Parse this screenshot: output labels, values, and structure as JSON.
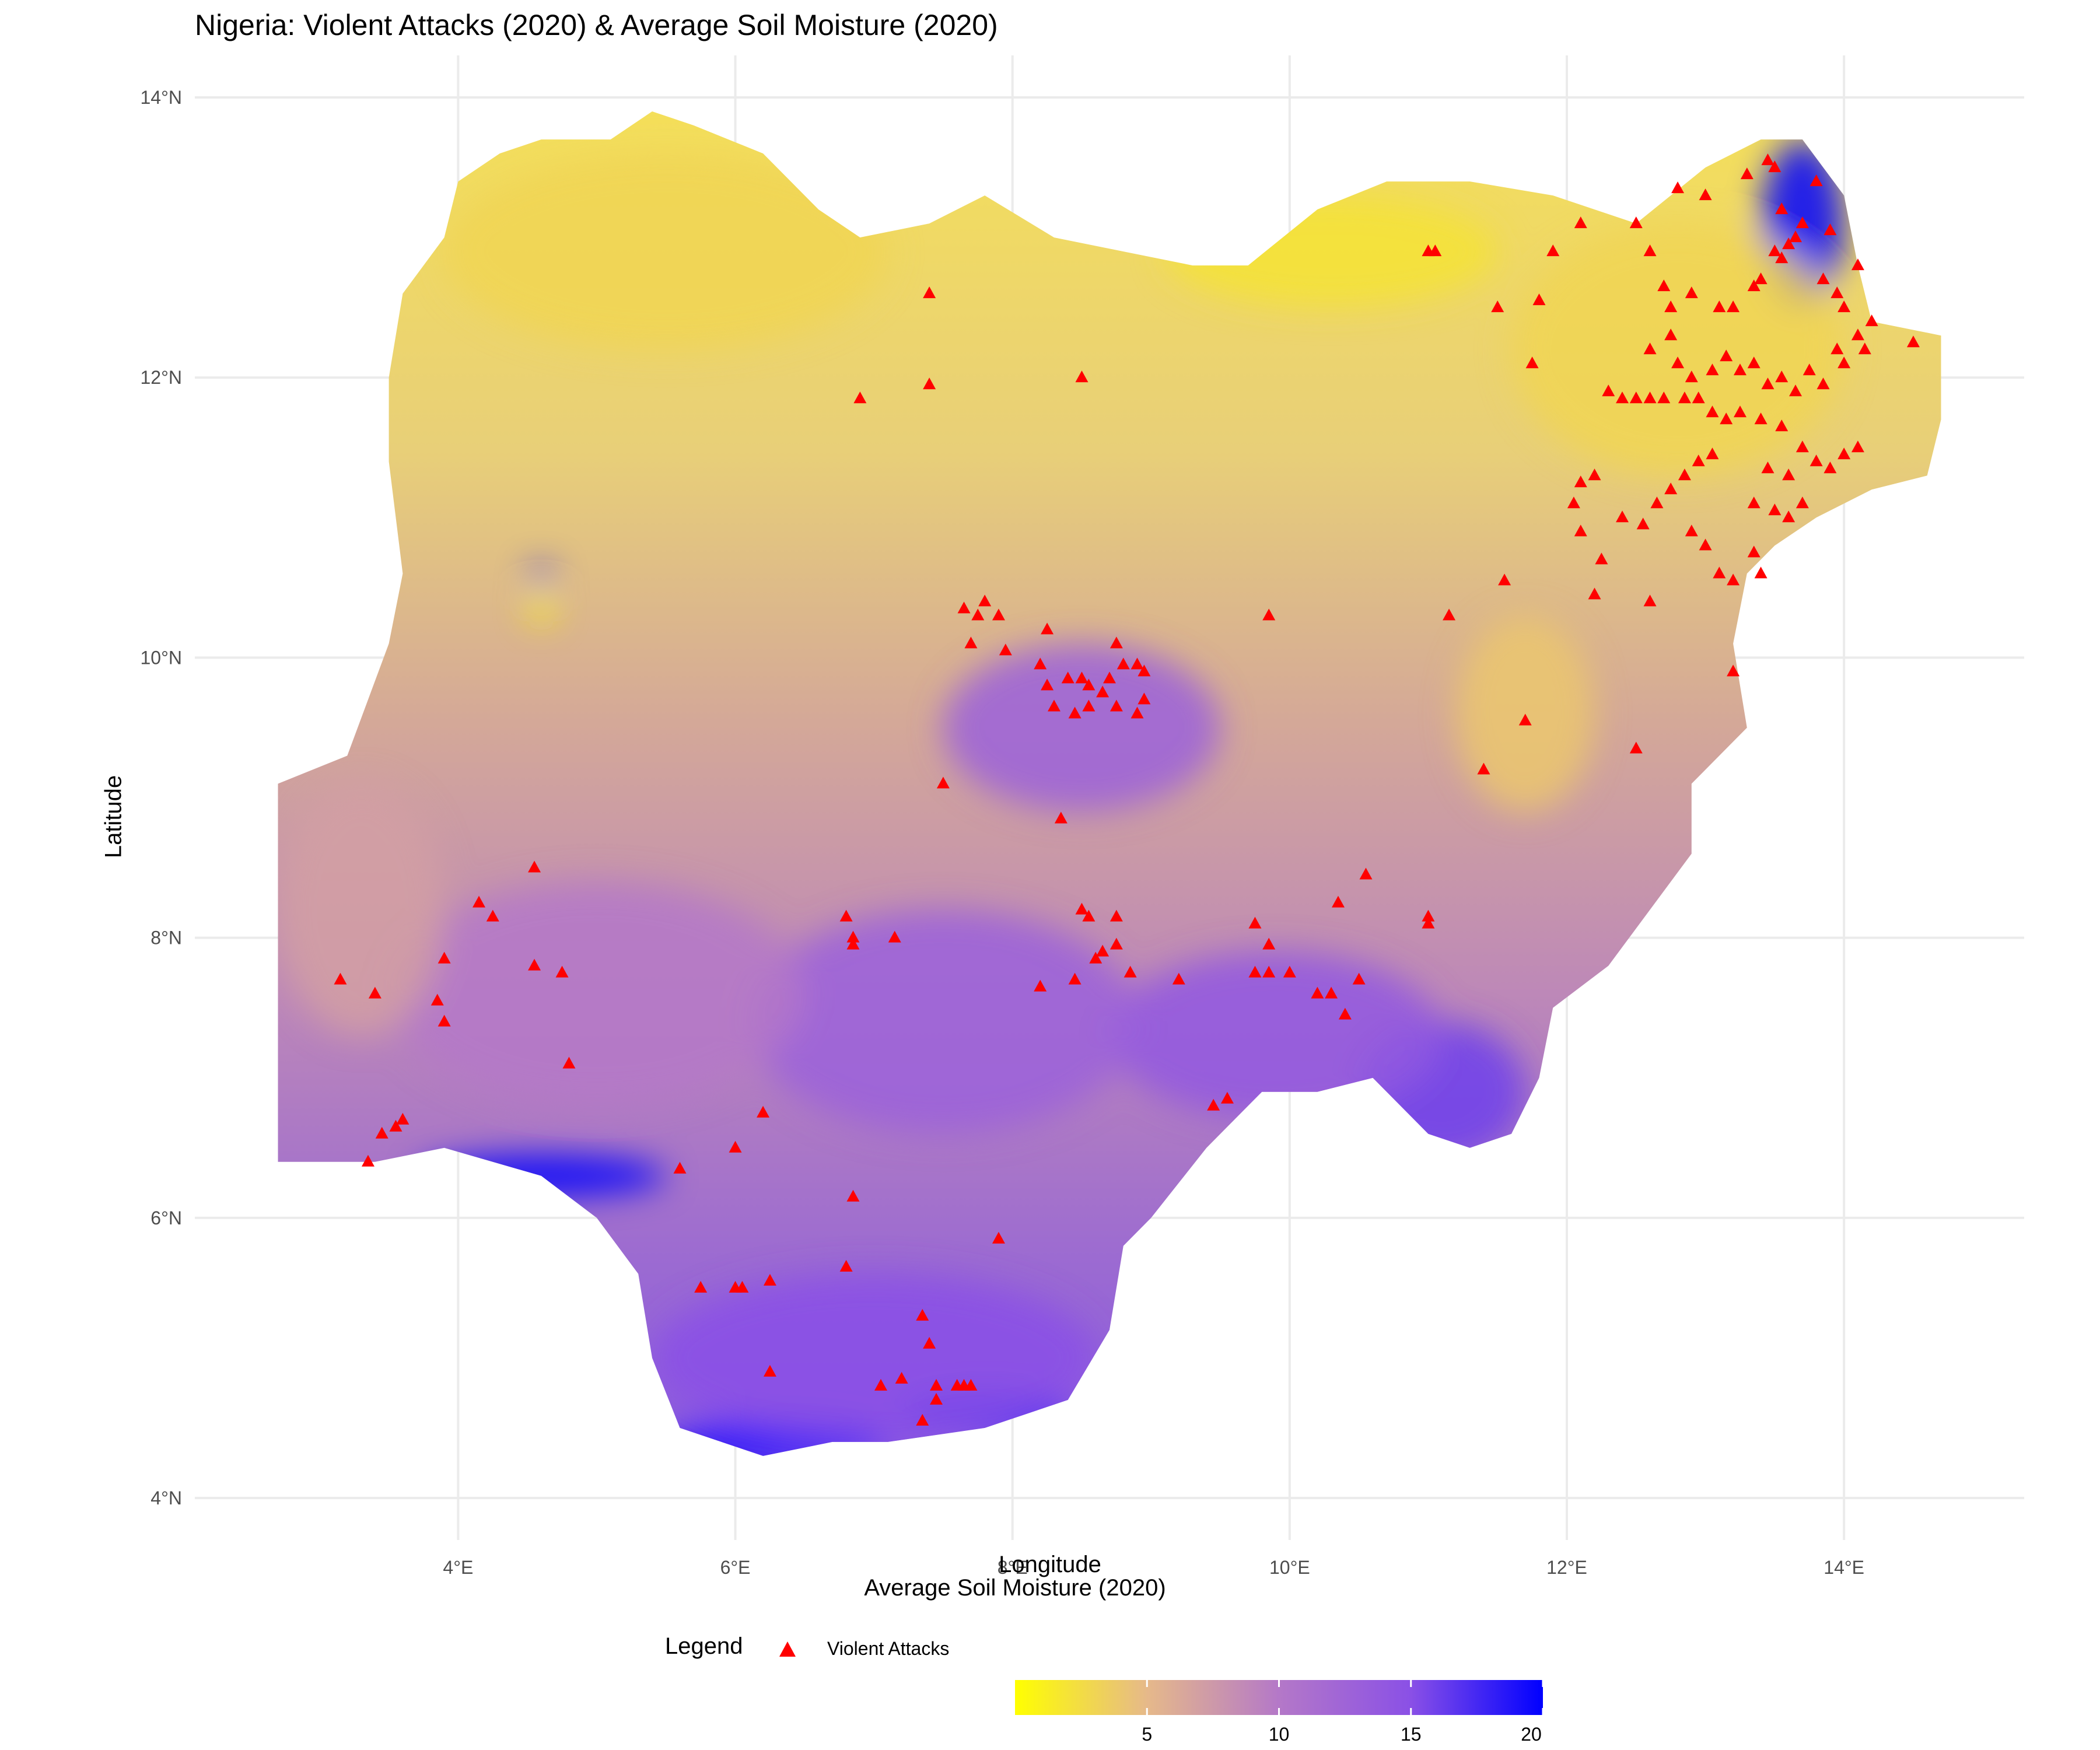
{
  "title": "Nigeria: Violent Attacks (2020) & Average Soil Moisture (2020)",
  "x_axis": {
    "label": "Longitude",
    "ticks": [
      {
        "value": 4,
        "label": "4°E"
      },
      {
        "value": 6,
        "label": "6°E"
      },
      {
        "value": 8,
        "label": "8°E"
      },
      {
        "value": 10,
        "label": "10°E"
      },
      {
        "value": 12,
        "label": "12°E"
      },
      {
        "value": 14,
        "label": "14°E"
      }
    ]
  },
  "y_axis": {
    "label": "Latitude",
    "ticks": [
      {
        "value": 4,
        "label": "4°N"
      },
      {
        "value": 6,
        "label": "6°N"
      },
      {
        "value": 8,
        "label": "8°N"
      },
      {
        "value": 10,
        "label": "10°N"
      },
      {
        "value": 12,
        "label": "12°N"
      },
      {
        "value": 14,
        "label": "14°N"
      }
    ]
  },
  "legend": {
    "title": "Legend",
    "attacks_label": "Violent Attacks",
    "attack_color": "#ff0000"
  },
  "colorbar": {
    "title": "Average Soil Moisture (2020)",
    "ticks": [
      5,
      10,
      15,
      20
    ],
    "range": [
      0,
      20
    ],
    "colors": [
      "#ffff00",
      "#e6b98a",
      "#b478c8",
      "#8a50e6",
      "#0000ff"
    ]
  },
  "map_data": {
    "region": "Nigeria",
    "lon_range": [
      2.1,
      15.3
    ],
    "lat_range": [
      3.7,
      14.3
    ],
    "outline": [
      [
        2.7,
        6.4
      ],
      [
        2.7,
        7.8
      ],
      [
        2.7,
        9.1
      ],
      [
        3.2,
        9.3
      ],
      [
        3.5,
        10.1
      ],
      [
        3.6,
        10.6
      ],
      [
        3.5,
        11.4
      ],
      [
        3.5,
        12.0
      ],
      [
        3.6,
        12.6
      ],
      [
        3.9,
        13.0
      ],
      [
        4.0,
        13.4
      ],
      [
        4.3,
        13.6
      ],
      [
        4.6,
        13.7
      ],
      [
        5.1,
        13.7
      ],
      [
        5.4,
        13.9
      ],
      [
        5.7,
        13.8
      ],
      [
        6.2,
        13.6
      ],
      [
        6.6,
        13.2
      ],
      [
        6.9,
        13.0
      ],
      [
        7.4,
        13.1
      ],
      [
        7.8,
        13.3
      ],
      [
        8.3,
        13.0
      ],
      [
        8.8,
        12.9
      ],
      [
        9.3,
        12.8
      ],
      [
        9.7,
        12.8
      ],
      [
        10.2,
        13.2
      ],
      [
        10.7,
        13.4
      ],
      [
        11.3,
        13.4
      ],
      [
        11.9,
        13.3
      ],
      [
        12.5,
        13.1
      ],
      [
        13.0,
        13.5
      ],
      [
        13.4,
        13.7
      ],
      [
        13.7,
        13.7
      ],
      [
        14.0,
        13.3
      ],
      [
        14.1,
        12.8
      ],
      [
        14.2,
        12.4
      ],
      [
        14.7,
        12.3
      ],
      [
        14.7,
        11.7
      ],
      [
        14.6,
        11.3
      ],
      [
        14.2,
        11.2
      ],
      [
        13.8,
        11.0
      ],
      [
        13.5,
        10.8
      ],
      [
        13.3,
        10.6
      ],
      [
        13.2,
        10.1
      ],
      [
        13.3,
        9.5
      ],
      [
        12.9,
        9.1
      ],
      [
        12.9,
        8.6
      ],
      [
        12.6,
        8.2
      ],
      [
        12.3,
        7.8
      ],
      [
        11.9,
        7.5
      ],
      [
        11.8,
        7.0
      ],
      [
        11.6,
        6.6
      ],
      [
        11.3,
        6.5
      ],
      [
        11.0,
        6.6
      ],
      [
        10.6,
        7.0
      ],
      [
        10.2,
        6.9
      ],
      [
        9.8,
        6.9
      ],
      [
        9.4,
        6.5
      ],
      [
        9.0,
        6.0
      ],
      [
        8.8,
        5.8
      ],
      [
        8.7,
        5.2
      ],
      [
        8.4,
        4.7
      ],
      [
        7.8,
        4.5
      ],
      [
        7.1,
        4.4
      ],
      [
        6.7,
        4.4
      ],
      [
        6.2,
        4.3
      ],
      [
        5.6,
        4.5
      ],
      [
        5.4,
        5.0
      ],
      [
        5.3,
        5.6
      ],
      [
        5.0,
        6.0
      ],
      [
        4.6,
        6.3
      ],
      [
        3.9,
        6.5
      ],
      [
        3.4,
        6.4
      ],
      [
        2.7,
        6.4
      ]
    ],
    "soil_moisture_fields": [
      {
        "lon": 13.7,
        "lat": 13.1,
        "value": 20,
        "rx": 0.3,
        "ry": 0.6
      },
      {
        "lon": 4.6,
        "lat": 6.3,
        "value": 20,
        "rx": 0.9,
        "ry": 0.15
      },
      {
        "lon": 6.3,
        "lat": 4.4,
        "value": 20,
        "rx": 0.8,
        "ry": 0.15
      },
      {
        "lon": 7.8,
        "lat": 4.6,
        "value": 19,
        "rx": 0.6,
        "ry": 0.15
      },
      {
        "lon": 7.0,
        "lat": 5.0,
        "value": 15,
        "rx": 1.6,
        "ry": 0.6
      },
      {
        "lon": 11.1,
        "lat": 6.9,
        "value": 16,
        "rx": 0.6,
        "ry": 0.5
      },
      {
        "lon": 9.9,
        "lat": 7.3,
        "value": 14,
        "rx": 1.2,
        "ry": 0.6
      },
      {
        "lon": 8.5,
        "lat": 9.5,
        "value": 13,
        "rx": 1.0,
        "ry": 0.6
      },
      {
        "lon": 7.5,
        "lat": 7.4,
        "value": 13,
        "rx": 1.4,
        "ry": 0.8
      },
      {
        "lon": 5.0,
        "lat": 7.6,
        "value": 10,
        "rx": 1.5,
        "ry": 0.8
      },
      {
        "lon": 3.3,
        "lat": 8.2,
        "value": 7,
        "rx": 0.6,
        "ry": 0.9
      },
      {
        "lon": 4.6,
        "lat": 10.6,
        "value": 20,
        "rx": 0.1,
        "ry": 0.05
      },
      {
        "lon": 4.6,
        "lat": 10.35,
        "value": 1,
        "rx": 0.1,
        "ry": 0.1
      },
      {
        "lon": 12.8,
        "lat": 12.2,
        "value": 3,
        "rx": 1.2,
        "ry": 0.9
      },
      {
        "lon": 10.3,
        "lat": 12.9,
        "value": 2,
        "rx": 1.2,
        "ry": 0.4
      },
      {
        "lon": 11.7,
        "lat": 9.6,
        "value": 4,
        "rx": 0.5,
        "ry": 0.7
      },
      {
        "lon": 5.5,
        "lat": 12.9,
        "value": 3,
        "rx": 1.6,
        "ry": 0.7
      }
    ],
    "violent_attacks": [
      [
        13.45,
        13.55
      ],
      [
        13.5,
        13.5
      ],
      [
        13.3,
        13.45
      ],
      [
        13.8,
        13.4
      ],
      [
        13.0,
        13.3
      ],
      [
        12.8,
        13.35
      ],
      [
        13.55,
        13.2
      ],
      [
        13.7,
        13.1
      ],
      [
        13.65,
        13.0
      ],
      [
        13.6,
        12.95
      ],
      [
        13.5,
        12.9
      ],
      [
        13.55,
        12.85
      ],
      [
        13.9,
        13.05
      ],
      [
        13.4,
        12.7
      ],
      [
        13.35,
        12.65
      ],
      [
        13.2,
        12.5
      ],
      [
        13.1,
        12.5
      ],
      [
        12.9,
        12.6
      ],
      [
        12.7,
        12.65
      ],
      [
        12.75,
        12.5
      ],
      [
        12.5,
        13.1
      ],
      [
        12.6,
        12.9
      ],
      [
        12.1,
        13.1
      ],
      [
        11.9,
        12.9
      ],
      [
        11.0,
        12.9
      ],
      [
        11.05,
        12.9
      ],
      [
        11.5,
        12.5
      ],
      [
        11.8,
        12.55
      ],
      [
        11.75,
        12.1
      ],
      [
        12.75,
        12.3
      ],
      [
        12.6,
        12.2
      ],
      [
        12.8,
        12.1
      ],
      [
        12.9,
        12.0
      ],
      [
        13.05,
        12.05
      ],
      [
        13.15,
        12.15
      ],
      [
        13.25,
        12.05
      ],
      [
        13.35,
        12.1
      ],
      [
        13.45,
        11.95
      ],
      [
        13.55,
        12.0
      ],
      [
        13.65,
        11.9
      ],
      [
        13.75,
        12.05
      ],
      [
        13.85,
        11.95
      ],
      [
        13.95,
        12.2
      ],
      [
        14.0,
        12.1
      ],
      [
        14.1,
        12.3
      ],
      [
        14.15,
        12.2
      ],
      [
        14.2,
        12.4
      ],
      [
        14.5,
        12.25
      ],
      [
        14.0,
        12.5
      ],
      [
        14.1,
        12.8
      ],
      [
        13.95,
        12.6
      ],
      [
        13.85,
        12.7
      ],
      [
        12.3,
        11.9
      ],
      [
        12.4,
        11.85
      ],
      [
        12.5,
        11.85
      ],
      [
        12.6,
        11.85
      ],
      [
        12.7,
        11.85
      ],
      [
        12.85,
        11.85
      ],
      [
        12.95,
        11.85
      ],
      [
        13.05,
        11.75
      ],
      [
        13.15,
        11.7
      ],
      [
        13.25,
        11.75
      ],
      [
        13.4,
        11.7
      ],
      [
        13.55,
        11.65
      ],
      [
        13.7,
        11.5
      ],
      [
        13.8,
        11.4
      ],
      [
        13.9,
        11.35
      ],
      [
        14.0,
        11.45
      ],
      [
        14.1,
        11.5
      ],
      [
        13.6,
        11.3
      ],
      [
        13.45,
        11.35
      ],
      [
        13.35,
        11.1
      ],
      [
        13.5,
        11.05
      ],
      [
        13.6,
        11.0
      ],
      [
        13.7,
        11.1
      ],
      [
        12.95,
        11.4
      ],
      [
        13.05,
        11.45
      ],
      [
        12.2,
        11.3
      ],
      [
        12.1,
        11.25
      ],
      [
        12.05,
        11.1
      ],
      [
        12.1,
        10.9
      ],
      [
        12.25,
        10.7
      ],
      [
        12.2,
        10.45
      ],
      [
        12.4,
        11.0
      ],
      [
        12.55,
        10.95
      ],
      [
        12.65,
        11.1
      ],
      [
        12.75,
        11.2
      ],
      [
        12.85,
        11.3
      ],
      [
        12.9,
        10.9
      ],
      [
        13.0,
        10.8
      ],
      [
        13.1,
        10.6
      ],
      [
        13.2,
        10.55
      ],
      [
        13.35,
        10.75
      ],
      [
        13.4,
        10.6
      ],
      [
        12.6,
        10.4
      ],
      [
        13.2,
        9.9
      ],
      [
        11.55,
        10.55
      ],
      [
        11.15,
        10.3
      ],
      [
        11.7,
        9.55
      ],
      [
        11.4,
        9.2
      ],
      [
        12.5,
        9.35
      ],
      [
        9.85,
        10.3
      ],
      [
        7.65,
        10.35
      ],
      [
        7.75,
        10.3
      ],
      [
        7.8,
        10.4
      ],
      [
        7.9,
        10.3
      ],
      [
        7.7,
        10.1
      ],
      [
        7.95,
        10.05
      ],
      [
        8.25,
        10.2
      ],
      [
        8.2,
        9.95
      ],
      [
        8.25,
        9.8
      ],
      [
        8.4,
        9.85
      ],
      [
        8.5,
        9.85
      ],
      [
        8.55,
        9.8
      ],
      [
        8.65,
        9.75
      ],
      [
        8.7,
        9.85
      ],
      [
        8.75,
        10.1
      ],
      [
        8.8,
        9.95
      ],
      [
        8.9,
        9.95
      ],
      [
        8.95,
        9.9
      ],
      [
        8.95,
        9.7
      ],
      [
        8.3,
        9.65
      ],
      [
        8.45,
        9.6
      ],
      [
        8.55,
        9.65
      ],
      [
        8.75,
        9.65
      ],
      [
        8.9,
        9.6
      ],
      [
        7.4,
        12.6
      ],
      [
        6.9,
        11.85
      ],
      [
        7.4,
        11.95
      ],
      [
        8.5,
        12.0
      ],
      [
        7.5,
        9.1
      ],
      [
        8.35,
        8.85
      ],
      [
        4.55,
        8.5
      ],
      [
        4.15,
        8.25
      ],
      [
        4.25,
        8.15
      ],
      [
        3.15,
        7.7
      ],
      [
        3.4,
        7.6
      ],
      [
        3.9,
        7.85
      ],
      [
        3.85,
        7.55
      ],
      [
        3.9,
        7.4
      ],
      [
        4.55,
        7.8
      ],
      [
        4.75,
        7.75
      ],
      [
        4.8,
        7.1
      ],
      [
        6.8,
        8.15
      ],
      [
        6.85,
        8.0
      ],
      [
        6.85,
        7.95
      ],
      [
        7.15,
        8.0
      ],
      [
        8.5,
        8.2
      ],
      [
        8.55,
        8.15
      ],
      [
        8.75,
        8.15
      ],
      [
        8.75,
        7.95
      ],
      [
        8.65,
        7.9
      ],
      [
        8.6,
        7.85
      ],
      [
        8.2,
        7.65
      ],
      [
        8.45,
        7.7
      ],
      [
        8.85,
        7.75
      ],
      [
        9.2,
        7.7
      ],
      [
        9.75,
        8.1
      ],
      [
        9.85,
        7.95
      ],
      [
        9.75,
        7.75
      ],
      [
        9.85,
        7.75
      ],
      [
        10.0,
        7.75
      ],
      [
        10.2,
        7.6
      ],
      [
        10.3,
        7.6
      ],
      [
        10.4,
        7.45
      ],
      [
        10.5,
        7.7
      ],
      [
        10.35,
        8.25
      ],
      [
        10.55,
        8.45
      ],
      [
        11.0,
        8.15
      ],
      [
        11.0,
        8.1
      ],
      [
        9.45,
        6.8
      ],
      [
        9.55,
        6.85
      ],
      [
        3.35,
        6.4
      ],
      [
        3.45,
        6.6
      ],
      [
        3.55,
        6.65
      ],
      [
        3.6,
        6.7
      ],
      [
        6.2,
        6.75
      ],
      [
        6.0,
        6.5
      ],
      [
        5.6,
        6.35
      ],
      [
        6.85,
        6.15
      ],
      [
        7.9,
        5.85
      ],
      [
        6.8,
        5.65
      ],
      [
        5.75,
        5.5
      ],
      [
        6.0,
        5.5
      ],
      [
        6.05,
        5.5
      ],
      [
        6.25,
        5.55
      ],
      [
        7.35,
        5.3
      ],
      [
        7.4,
        5.1
      ],
      [
        6.25,
        4.9
      ],
      [
        7.2,
        4.85
      ],
      [
        7.05,
        4.8
      ],
      [
        7.45,
        4.8
      ],
      [
        7.6,
        4.8
      ],
      [
        7.65,
        4.8
      ],
      [
        7.7,
        4.8
      ],
      [
        7.45,
        4.7
      ],
      [
        7.35,
        4.55
      ]
    ]
  }
}
